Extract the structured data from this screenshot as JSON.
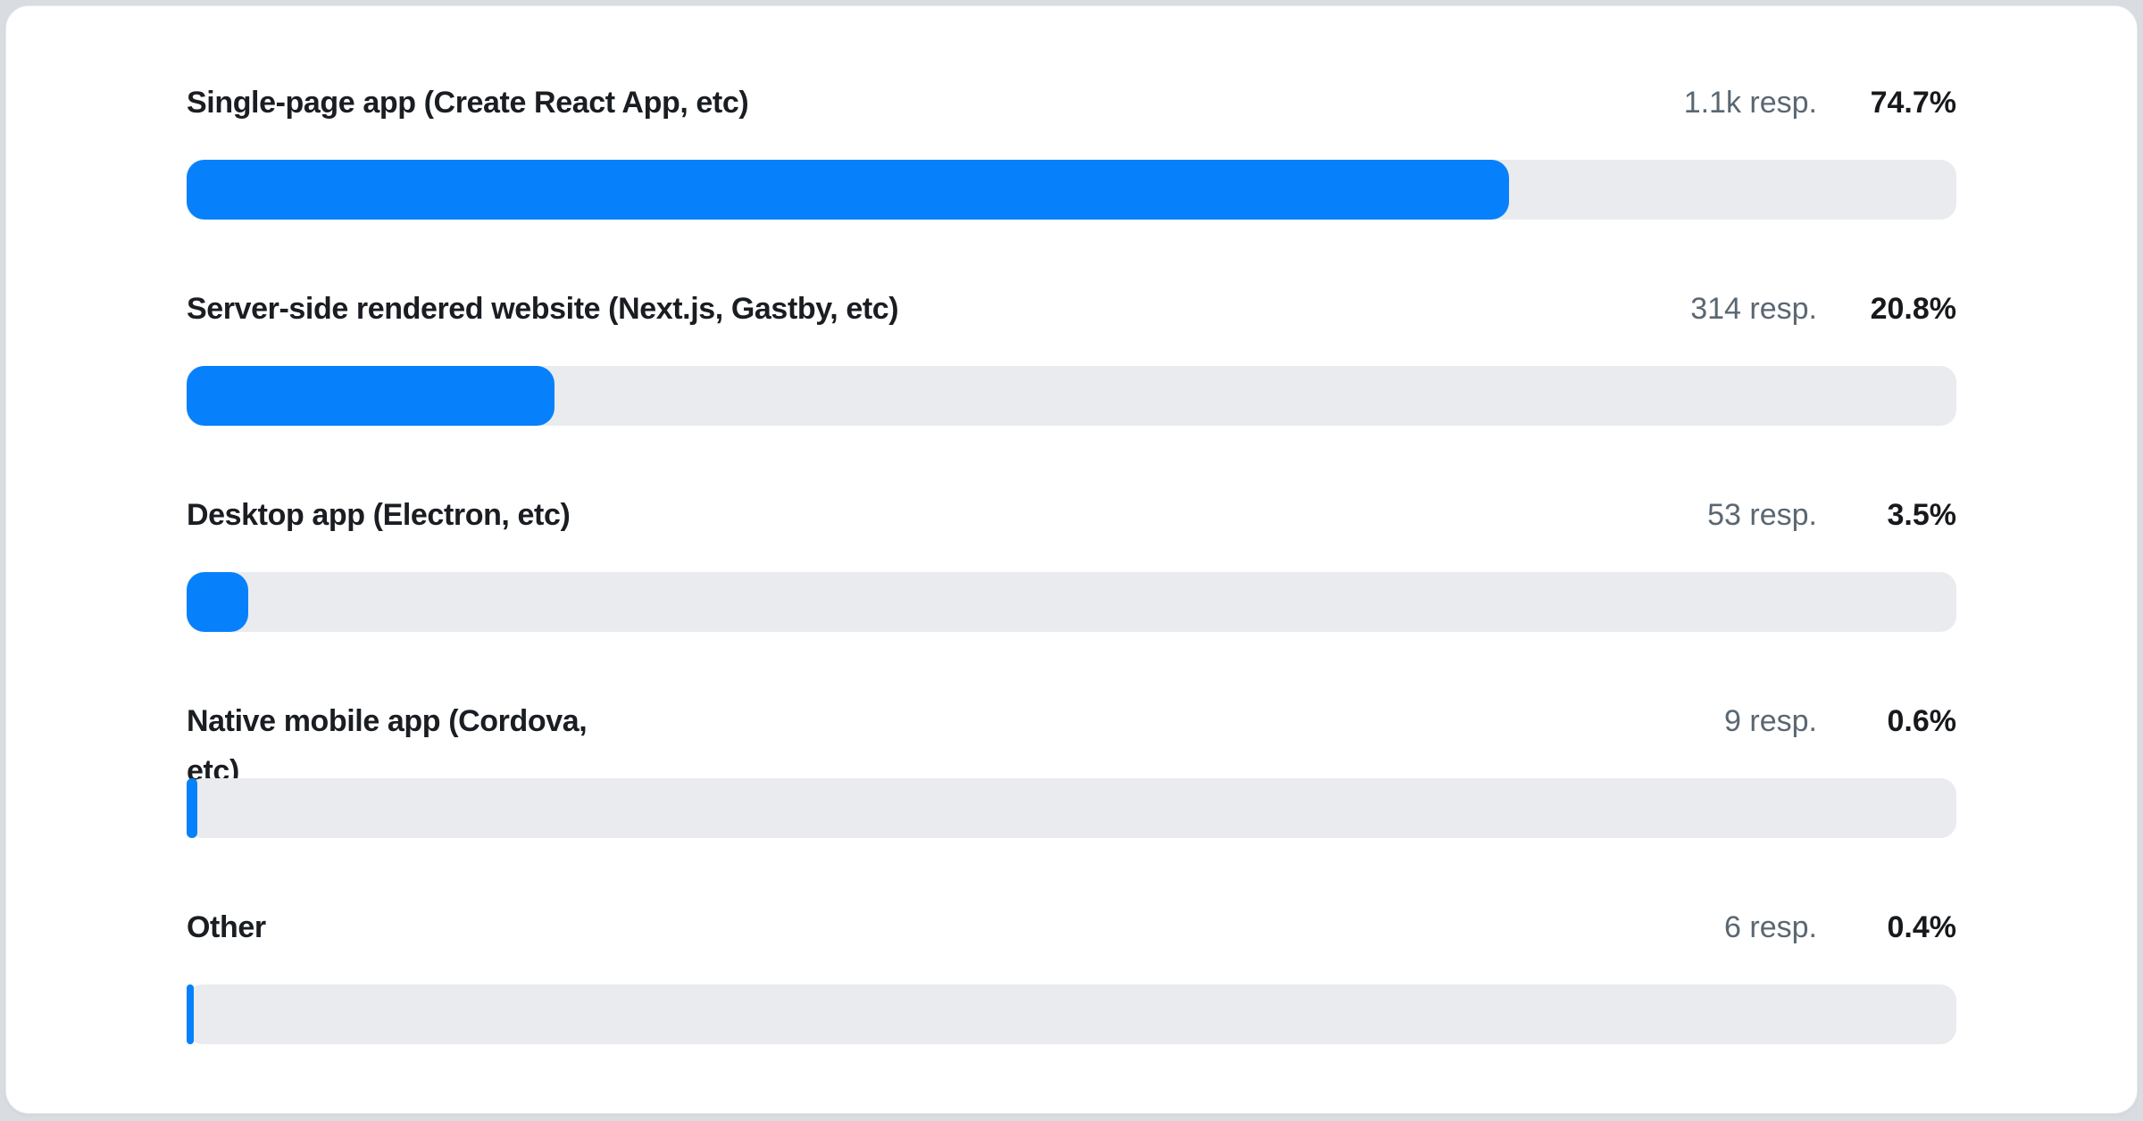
{
  "page": {
    "background_color": "#d9dde1",
    "card_background_color": "#ffffff"
  },
  "colors": {
    "bar_fill": "#0781fb",
    "bar_track": "#e9ebee",
    "label_text": "#1a1d21",
    "responses_text": "#5a6772",
    "percent_text": "#17191c"
  },
  "chart_data": {
    "type": "bar",
    "orientation": "horizontal",
    "title": "",
    "xlabel": "",
    "ylabel": "",
    "value_unit": "%",
    "axis_range": [
      0,
      100
    ],
    "grid": false,
    "legend": false,
    "categories": [
      "Single-page app (Create React App, etc)",
      "Server-side rendered website (Next.js, Gastby, etc)",
      "Desktop app (Electron, etc)",
      "Native mobile app (Cordova, etc)",
      "Other"
    ],
    "values": [
      74.7,
      20.8,
      3.5,
      0.6,
      0.4
    ],
    "rows": [
      {
        "label": "Single-page app (Create React App, etc)",
        "responses": "1.1k resp.",
        "percent": "74.7%",
        "value": 74.7
      },
      {
        "label": "Server-side rendered website (Next.js, Gastby, etc)",
        "responses": "314 resp.",
        "percent": "20.8%",
        "value": 20.8
      },
      {
        "label": "Desktop app (Electron, etc)",
        "responses": "53 resp.",
        "percent": "3.5%",
        "value": 3.5
      },
      {
        "label": "Native mobile app (Cordova,\netc)",
        "responses": "9 resp.",
        "percent": "0.6%",
        "value": 0.6
      },
      {
        "label": "Other",
        "responses": "6 resp.",
        "percent": "0.4%",
        "value": 0.4
      }
    ]
  }
}
